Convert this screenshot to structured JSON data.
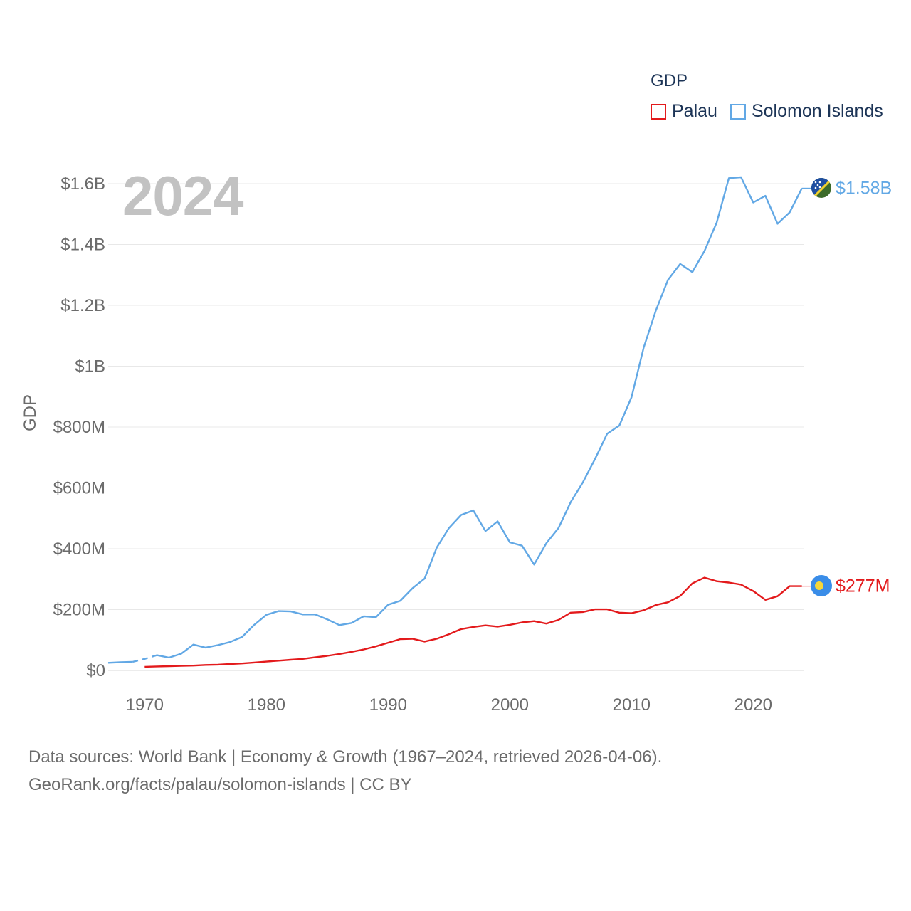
{
  "legend": {
    "title": "GDP",
    "items": [
      {
        "name": "Palau",
        "color": "#e31a1c"
      },
      {
        "name": "Solomon Islands",
        "color": "#62a8e5"
      }
    ]
  },
  "year_label": "2024",
  "footer": {
    "line1": "Data sources: World Bank | Economy & Growth (1967–2024, retrieved 2026-04-06).",
    "line2": "GeoRank.org/facts/palau/solomon-islands | CC BY"
  },
  "chart_data": {
    "type": "line",
    "title": "GDP",
    "xlabel": "",
    "ylabel": "GDP",
    "xlim": [
      1967,
      2024
    ],
    "ylim": [
      0,
      1600000000
    ],
    "x_ticks": [
      1970,
      1980,
      1990,
      2000,
      2010,
      2020
    ],
    "y_ticks": [
      {
        "value": 0,
        "label": "$0"
      },
      {
        "value": 200000000,
        "label": "$200M"
      },
      {
        "value": 400000000,
        "label": "$400M"
      },
      {
        "value": 600000000,
        "label": "$600M"
      },
      {
        "value": 800000000,
        "label": "$800M"
      },
      {
        "value": 1000000000,
        "label": "$1B"
      },
      {
        "value": 1200000000,
        "label": "$1.2B"
      },
      {
        "value": 1400000000,
        "label": "$1.4B"
      },
      {
        "value": 1600000000,
        "label": "$1.6B"
      }
    ],
    "grid": true,
    "series": [
      {
        "name": "Solomon Islands",
        "color": "#62a8e5",
        "end_label": "$1.58B",
        "gap_years": [
          1969,
          1971
        ],
        "points": [
          [
            1967,
            25
          ],
          [
            1968,
            27
          ],
          [
            1969,
            28
          ],
          [
            1970,
            38
          ],
          [
            1971,
            50
          ],
          [
            1972,
            42
          ],
          [
            1973,
            55
          ],
          [
            1974,
            85
          ],
          [
            1975,
            75
          ],
          [
            1976,
            83
          ],
          [
            1977,
            93
          ],
          [
            1978,
            110
          ],
          [
            1979,
            150
          ],
          [
            1980,
            183
          ],
          [
            1981,
            195
          ],
          [
            1982,
            194
          ],
          [
            1983,
            184
          ],
          [
            1984,
            184
          ],
          [
            1985,
            168
          ],
          [
            1986,
            149
          ],
          [
            1987,
            156
          ],
          [
            1988,
            178
          ],
          [
            1989,
            175
          ],
          [
            1990,
            216
          ],
          [
            1991,
            229
          ],
          [
            1992,
            270
          ],
          [
            1993,
            302
          ],
          [
            1994,
            404
          ],
          [
            1995,
            468
          ],
          [
            1996,
            511
          ],
          [
            1997,
            526
          ],
          [
            1998,
            458
          ],
          [
            1999,
            490
          ],
          [
            2000,
            421
          ],
          [
            2001,
            410
          ],
          [
            2002,
            348
          ],
          [
            2003,
            418
          ],
          [
            2004,
            468
          ],
          [
            2005,
            553
          ],
          [
            2006,
            618
          ],
          [
            2007,
            695
          ],
          [
            2008,
            778
          ],
          [
            2009,
            805
          ],
          [
            2010,
            898
          ],
          [
            2011,
            1061
          ],
          [
            2012,
            1183
          ],
          [
            2013,
            1284
          ],
          [
            2014,
            1336
          ],
          [
            2015,
            1309
          ],
          [
            2016,
            1379
          ],
          [
            2017,
            1472
          ],
          [
            2018,
            1618
          ],
          [
            2019,
            1621
          ],
          [
            2020,
            1538
          ],
          [
            2021,
            1560
          ],
          [
            2022,
            1468
          ],
          [
            2023,
            1506
          ],
          [
            2024,
            1585
          ]
        ]
      },
      {
        "name": "Palau",
        "color": "#e31a1c",
        "end_label": "$277M",
        "points": [
          [
            1970,
            12
          ],
          [
            1971,
            13
          ],
          [
            1972,
            14
          ],
          [
            1973,
            15
          ],
          [
            1974,
            16
          ],
          [
            1975,
            18
          ],
          [
            1976,
            19
          ],
          [
            1977,
            21
          ],
          [
            1978,
            23
          ],
          [
            1979,
            26
          ],
          [
            1980,
            29
          ],
          [
            1981,
            32
          ],
          [
            1982,
            35
          ],
          [
            1983,
            38
          ],
          [
            1984,
            43
          ],
          [
            1985,
            48
          ],
          [
            1986,
            54
          ],
          [
            1987,
            61
          ],
          [
            1988,
            69
          ],
          [
            1989,
            79
          ],
          [
            1990,
            91
          ],
          [
            1991,
            103
          ],
          [
            1992,
            104
          ],
          [
            1993,
            95
          ],
          [
            1994,
            104
          ],
          [
            1995,
            119
          ],
          [
            1996,
            136
          ],
          [
            1997,
            143
          ],
          [
            1998,
            148
          ],
          [
            1999,
            144
          ],
          [
            2000,
            150
          ],
          [
            2001,
            158
          ],
          [
            2002,
            162
          ],
          [
            2003,
            154
          ],
          [
            2004,
            166
          ],
          [
            2005,
            190
          ],
          [
            2006,
            192
          ],
          [
            2007,
            201
          ],
          [
            2008,
            201
          ],
          [
            2009,
            190
          ],
          [
            2010,
            188
          ],
          [
            2011,
            198
          ],
          [
            2012,
            215
          ],
          [
            2013,
            224
          ],
          [
            2014,
            245
          ],
          [
            2015,
            286
          ],
          [
            2016,
            305
          ],
          [
            2017,
            293
          ],
          [
            2018,
            289
          ],
          [
            2019,
            282
          ],
          [
            2020,
            261
          ],
          [
            2021,
            232
          ],
          [
            2022,
            244
          ],
          [
            2023,
            277
          ],
          [
            2024,
            277
          ]
        ]
      }
    ]
  }
}
